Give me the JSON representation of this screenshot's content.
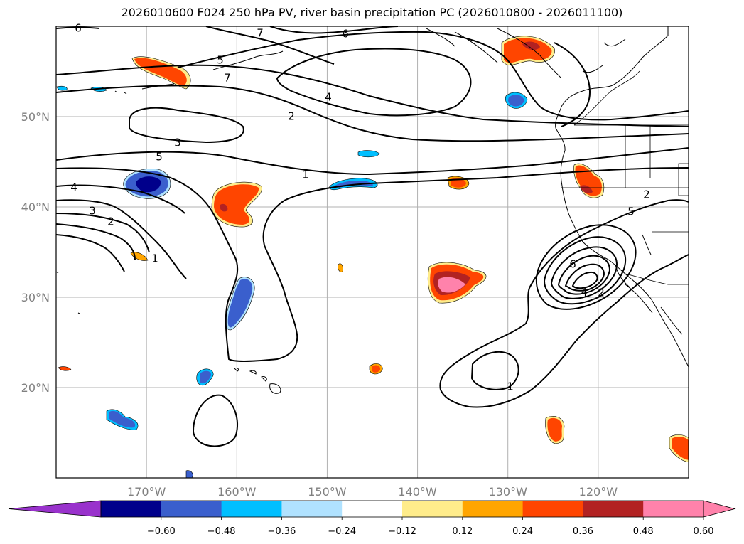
{
  "title": "2026010600 F024 250 hPa PV, river basin precipitation PC (2026010800 - 2026011100)",
  "map": {
    "lon_min": -180,
    "lon_max": -110,
    "lat_min": 10,
    "lat_max": 60,
    "grid_lons": [
      -170,
      -160,
      -150,
      -140,
      -130,
      -120
    ],
    "grid_lats": [
      20,
      30,
      40,
      50
    ],
    "lon_labels": [
      "170°W",
      "160°W",
      "150°W",
      "140°W",
      "130°W",
      "120°W"
    ],
    "lat_labels": [
      "20°N",
      "30°N",
      "40°N",
      "50°N"
    ],
    "grid_color": "#b0b0b0",
    "label_color": "#808080"
  },
  "contour_labels": [
    "6",
    "7",
    "6",
    "5",
    "7",
    "4",
    "2",
    "3",
    "5",
    "4",
    "3",
    "2",
    "1",
    "1",
    "2",
    "5",
    "6",
    "4",
    "2",
    "1"
  ],
  "colorbar": {
    "ticks": [
      "−0.60",
      "−0.48",
      "−0.36",
      "−0.24",
      "−0.12",
      "0.12",
      "0.24",
      "0.36",
      "0.48",
      "0.60"
    ],
    "under_color": "#9932cc",
    "colors": [
      "#00008b",
      "#3a5fcd",
      "#00bfff",
      "#b0e2ff",
      "#ffffff",
      "#ffec8b",
      "#ffa500",
      "#ff4500",
      "#b22222",
      "#ff82ab"
    ],
    "over_color": "#ff82ab"
  }
}
